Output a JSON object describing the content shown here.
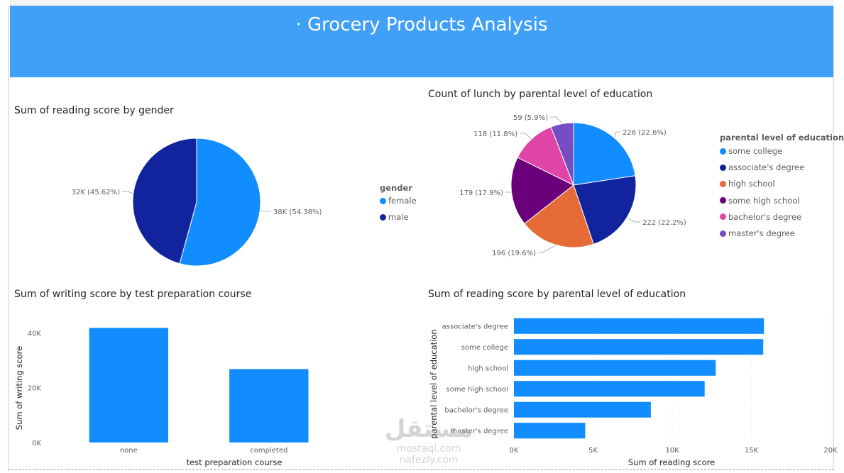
{
  "header": {
    "title": "· Grocery Products Analysis"
  },
  "colors": {
    "header_bg": "#40a0f8",
    "female": "#118dff",
    "male": "#12239e",
    "some_college": "#118dff",
    "associates_degree": "#12239e",
    "high_school": "#e66c37",
    "some_high_school": "#6b007b",
    "bachelors_degree": "#e044a7",
    "masters_degree": "#744ec2",
    "bar": "#118dff"
  },
  "watermark": {
    "big": "مستقل",
    "line1": "mostaql.com",
    "line2": "nafezly.com"
  },
  "chart_data": [
    {
      "type": "pie",
      "title": "Sum of reading score by gender",
      "legend_title": "gender",
      "legend_position": "right",
      "slices": [
        {
          "label": "female",
          "value": 38000,
          "display": "38K (54.38%)",
          "percent": 54.38,
          "color": "#118dff"
        },
        {
          "label": "male",
          "value": 32000,
          "display": "32K (45.62%)",
          "percent": 45.62,
          "color": "#12239e"
        }
      ]
    },
    {
      "type": "pie",
      "title": "Count of lunch by parental level of education",
      "legend_title": "parental level of education",
      "legend_position": "right",
      "slices": [
        {
          "label": "some college",
          "value": 226,
          "display": "226 (22.6%)",
          "percent": 22.6,
          "color": "#118dff"
        },
        {
          "label": "associate's degree",
          "value": 222,
          "display": "222 (22.2%)",
          "percent": 22.2,
          "color": "#12239e"
        },
        {
          "label": "high school",
          "value": 196,
          "display": "196 (19.6%)",
          "percent": 19.6,
          "color": "#e66c37"
        },
        {
          "label": "some high school",
          "value": 179,
          "display": "179 (17.9%)",
          "percent": 17.9,
          "color": "#6b007b"
        },
        {
          "label": "bachelor's degree",
          "value": 118,
          "display": "118 (11.8%)",
          "percent": 11.8,
          "color": "#e044a7"
        },
        {
          "label": "master's degree",
          "value": 59,
          "display": "59 (5.9%)",
          "percent": 5.9,
          "color": "#744ec2"
        }
      ]
    },
    {
      "type": "bar",
      "orientation": "vertical",
      "title": "Sum of writing score by test preparation course",
      "xlabel": "test preparation course",
      "ylabel": "Sum of writing score",
      "categories": [
        "none",
        "completed"
      ],
      "values": [
        41800,
        26800
      ],
      "ylim": [
        0,
        45000
      ],
      "yticks": [
        0,
        20000,
        40000
      ],
      "ytick_labels": [
        "0K",
        "20K",
        "40K"
      ],
      "grid": false,
      "color": "#118dff"
    },
    {
      "type": "bar",
      "orientation": "horizontal",
      "title": "Sum of reading score by parental level of education",
      "xlabel": "Sum of reading score",
      "ylabel": "parental level of education",
      "categories": [
        "associate's degree",
        "some college",
        "high school",
        "some high school",
        "bachelor's degree",
        "master's degree"
      ],
      "values": [
        15800,
        15750,
        12750,
        12050,
        8650,
        4500
      ],
      "xlim": [
        0,
        20000
      ],
      "xticks": [
        0,
        5000,
        10000,
        15000,
        20000
      ],
      "xtick_labels": [
        "0K",
        "5K",
        "10K",
        "15K",
        "20K"
      ],
      "grid": true,
      "color": "#118dff"
    }
  ]
}
